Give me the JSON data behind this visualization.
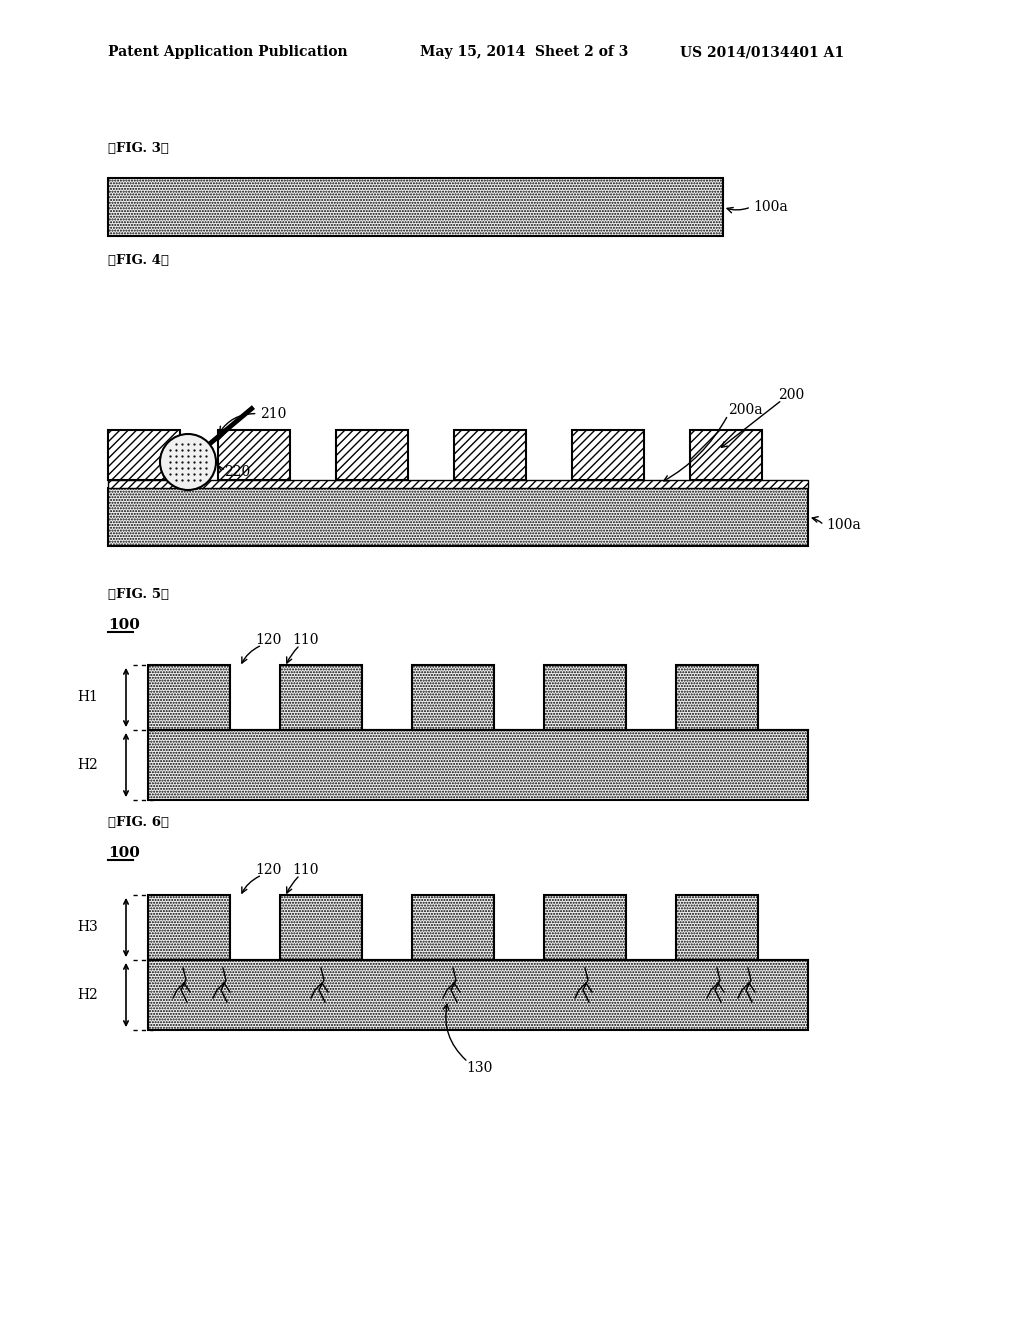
{
  "bg_color": "#ffffff",
  "header_left": "Patent Application Publication",
  "header_mid": "May 15, 2014  Sheet 2 of 3",
  "header_right": "US 2014/0134401 A1",
  "fig3_label": "【FIG. 3】",
  "fig4_label": "【FIG. 4】",
  "fig5_label": "【FIG. 5】",
  "fig6_label": "【FIG. 6】",
  "label_100_underline": "100",
  "label_100a": "100a",
  "label_200": "200",
  "label_200a": "200a",
  "label_210": "210",
  "label_220": "220",
  "label_120": "120",
  "label_110": "110",
  "label_130": "130",
  "label_H1": "H1",
  "label_H2": "H2",
  "label_H3": "H3",
  "text_color": "#000000",
  "fontsize_header": 10,
  "fontsize_label": 10,
  "fontsize_fig": 9.5
}
